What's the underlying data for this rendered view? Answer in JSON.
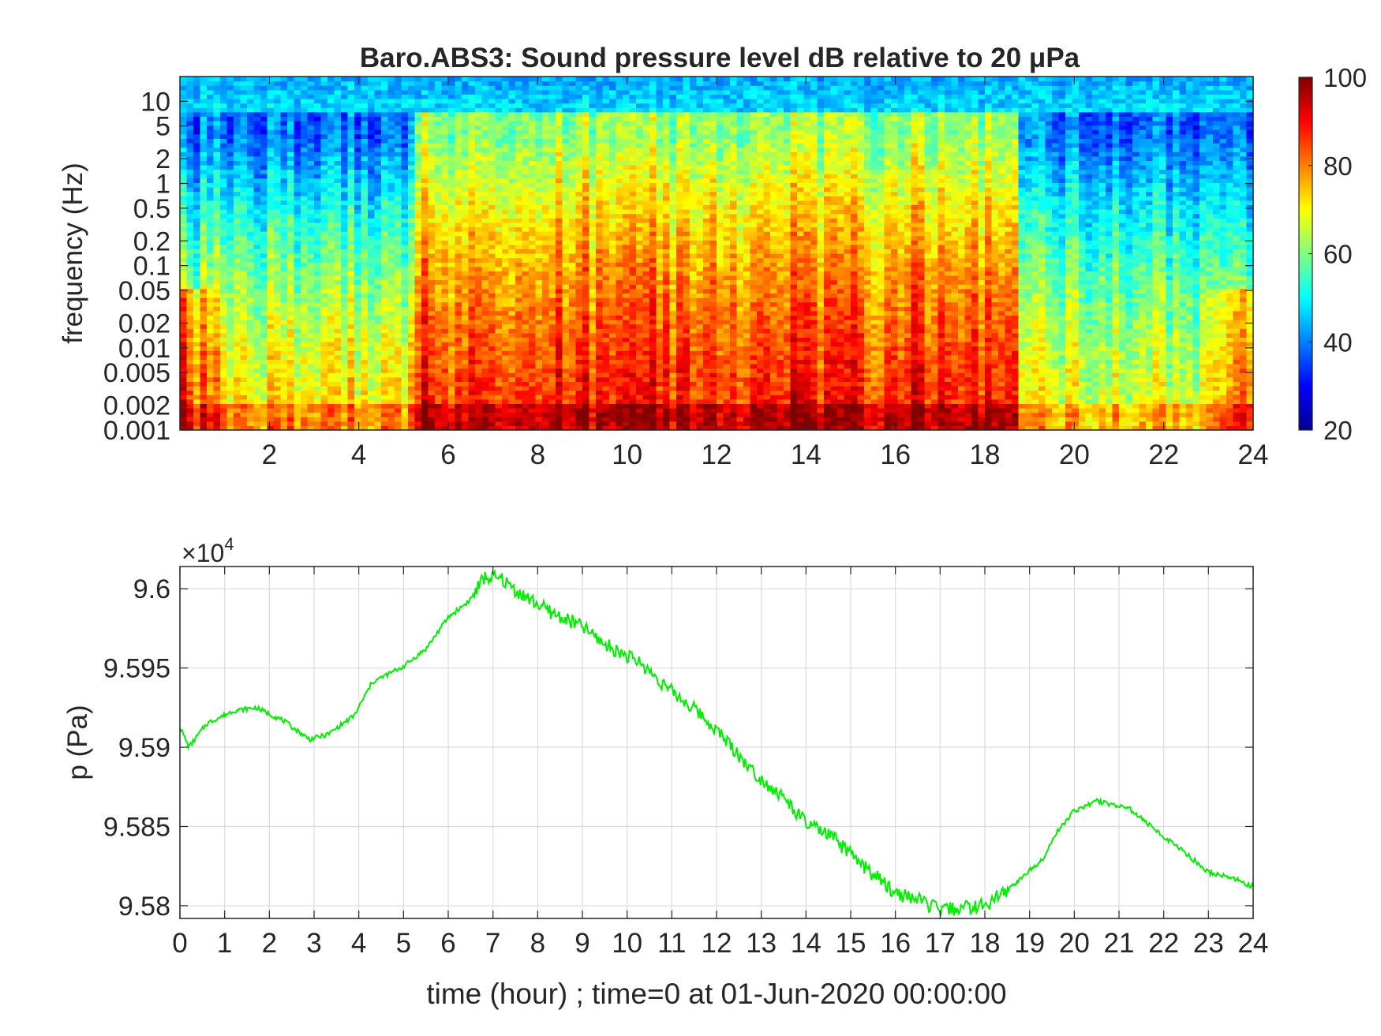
{
  "chart_data": [
    {
      "type": "heatmap",
      "title": "Baro.ABS3: Sound pressure level dB relative to 20 μPa",
      "xlabel": "",
      "ylabel": "frequency (Hz)",
      "xlim": [
        0,
        24
      ],
      "ylim": [
        0.001,
        20
      ],
      "yscale": "log",
      "x_ticks": [
        2,
        4,
        6,
        8,
        10,
        12,
        14,
        16,
        18,
        20,
        22,
        24
      ],
      "y_ticks": [
        0.001,
        0.002,
        0.005,
        0.01,
        0.02,
        0.05,
        0.1,
        0.2,
        0.5,
        1,
        2,
        5,
        10
      ],
      "y_tick_labels": [
        "0.001",
        "0.002",
        "0.005",
        "0.01",
        "0.02",
        "0.05",
        "0.1",
        "0.2",
        "0.5",
        "1",
        "2",
        "5",
        "10"
      ],
      "colorbar": {
        "min": 20,
        "max": 100,
        "ticks": [
          20,
          40,
          60,
          80,
          100
        ],
        "colormap": "jet"
      },
      "dominant_levels": [
        {
          "period_hours": [
            0,
            5.3
          ],
          "upper_band_db": 38,
          "lower_band_db": 72
        },
        {
          "period_hours": [
            5.3,
            18.7
          ],
          "upper_band_db": 62,
          "lower_band_db": 88
        },
        {
          "period_hours": [
            18.7,
            24
          ],
          "upper_band_db": 38,
          "lower_band_db": 68
        }
      ]
    },
    {
      "type": "line",
      "title": "",
      "xlabel": "time (hour) ; time=0 at 01-Jun-2020 00:00:00",
      "ylabel": "p (Pa)",
      "y_exponent_label": "×10",
      "y_exponent": "4",
      "xlim": [
        0,
        24
      ],
      "ylim": [
        9.5792,
        9.6014
      ],
      "x_ticks": [
        0,
        1,
        2,
        3,
        4,
        5,
        6,
        7,
        8,
        9,
        10,
        11,
        12,
        13,
        14,
        15,
        16,
        17,
        18,
        19,
        20,
        21,
        22,
        23,
        24
      ],
      "y_ticks": [
        9.58,
        9.585,
        9.59,
        9.595,
        9.6
      ],
      "y_tick_labels": [
        "9.58",
        "9.585",
        "9.59",
        "9.595",
        "9.6"
      ],
      "grid": true,
      "color": "#00ee00",
      "series": [
        {
          "x": [
            0,
            0.2,
            0.6,
            1.2,
            1.7,
            2.3,
            2.9,
            3.3,
            3.9,
            4.3,
            5,
            5.5,
            6,
            6.5,
            6.8,
            7.2,
            7.6,
            8.3,
            9,
            9.5,
            10.3,
            11,
            11.6,
            12.2,
            12.8,
            13.5,
            14,
            14.6,
            15.2,
            16,
            16.5,
            17,
            17.6,
            18,
            18.6,
            19.3,
            19.6,
            20,
            20.5,
            21.2,
            21.8,
            22.5,
            23,
            23.5,
            24
          ],
          "y": [
            9.5913,
            9.59,
            9.5915,
            9.5923,
            9.5925,
            9.5917,
            9.5905,
            9.5908,
            9.592,
            9.5941,
            9.5951,
            9.5962,
            9.5982,
            9.5993,
            9.6007,
            9.6006,
            9.5997,
            9.5985,
            9.5976,
            9.5965,
            9.5953,
            9.5935,
            9.5922,
            9.5905,
            9.5885,
            9.5868,
            9.5852,
            9.5843,
            9.5827,
            9.5808,
            9.5804,
            9.5797,
            9.5799,
            9.58,
            9.5812,
            9.583,
            9.5846,
            9.586,
            9.5866,
            9.5862,
            9.5848,
            9.5833,
            9.5821,
            9.5818,
            9.5812
          ]
        }
      ]
    }
  ]
}
